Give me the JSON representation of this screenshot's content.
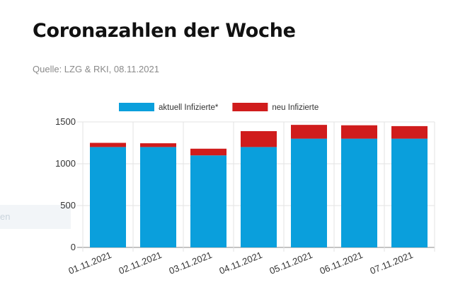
{
  "page": {
    "title": "Coronazahlen der Woche",
    "source": "Quelle: LZG & RKI, 08.11.2021",
    "side_fragment_text": "en"
  },
  "chart_data": {
    "type": "bar",
    "stacked": true,
    "categories": [
      "01.11.2021",
      "02.11.2021",
      "03.11.2021",
      "04.11.2021",
      "05.11.2021",
      "06.11.2021",
      "07.11.2021"
    ],
    "series": [
      {
        "name": "aktuell Infizierte*",
        "color": "#0a9fdc",
        "values": [
          1200,
          1200,
          1100,
          1200,
          1300,
          1300,
          1300
        ]
      },
      {
        "name": "neu Infizierte",
        "color": "#d01c1c",
        "values": [
          50,
          45,
          80,
          190,
          165,
          160,
          150
        ]
      }
    ],
    "ylim": [
      0,
      1500
    ],
    "yticks": [
      0,
      500,
      1000,
      1500
    ],
    "grid": true,
    "legend_position": "top",
    "xlabel": "",
    "ylabel": ""
  }
}
